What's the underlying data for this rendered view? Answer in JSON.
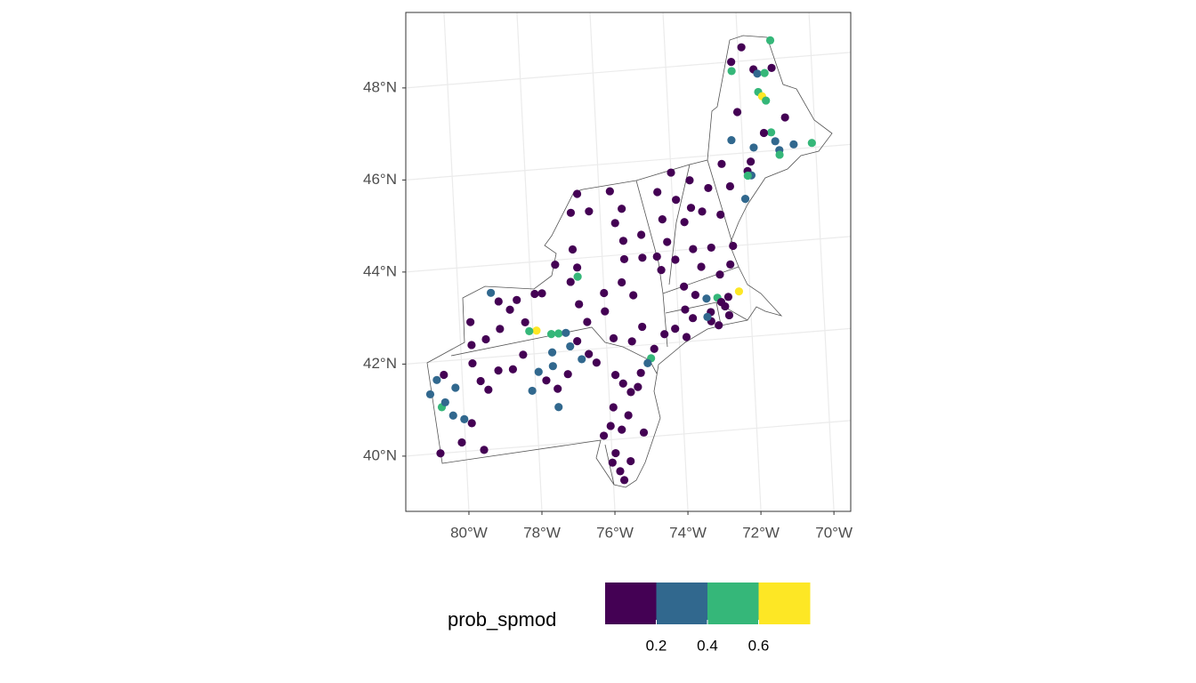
{
  "chart_data": {
    "type": "map",
    "xlim": [
      -81.73,
      -69.54
    ],
    "ylim": [
      38.8,
      49.64
    ],
    "xticks": [
      {
        "value": -80,
        "label": "80°W"
      },
      {
        "value": -78,
        "label": "78°W"
      },
      {
        "value": -76,
        "label": "76°W"
      },
      {
        "value": -74,
        "label": "74°W"
      },
      {
        "value": -72,
        "label": "72°W"
      },
      {
        "value": -70,
        "label": "70°W"
      }
    ],
    "yticks": [
      {
        "value": 40,
        "label": "40°N"
      },
      {
        "value": 42,
        "label": "42°N"
      },
      {
        "value": 44,
        "label": "44°N"
      },
      {
        "value": 46,
        "label": "46°N"
      },
      {
        "value": 48,
        "label": "48°N"
      }
    ],
    "grid": true,
    "legend": {
      "title": "prob_spmod",
      "breaks": [
        0.2,
        0.4,
        0.6
      ],
      "colors": [
        "#440154",
        "#31688e",
        "#35b779",
        "#fde725"
      ]
    },
    "x": [
      -71.1,
      -71.9,
      -72.2,
      -71.6,
      -71.1,
      -72.2,
      -71.5,
      -71.3,
      -71.5,
      -71.4,
      -71.3,
      -72.1,
      -70.8,
      -71.2,
      -71.4,
      -72.3,
      -71.1,
      -71.0,
      -70.6,
      -70.1,
      -71.7,
      -71.0,
      -71.8,
      -72.6,
      -71.9,
      -71.8,
      -72.4,
      -71.9,
      -72.0,
      -74.0,
      -73.5,
      -73.0,
      -74.4,
      -73.9,
      -73.5,
      -74.3,
      -73.7,
      -73.2,
      -72.7,
      -74.2,
      -74.0,
      -74.5,
      -73.5,
      -73.0,
      -72.4,
      -72.5,
      -72.8,
      -73.3,
      -73.8,
      -74.4,
      -76.6,
      -76.8,
      -76.3,
      -75.7,
      -75.6,
      -75.4,
      -75.4,
      -74.9,
      -76.8,
      -76.7,
      -77.3,
      -75.4,
      -74.9,
      -76.9,
      -76.7,
      -77.9,
      -77.7,
      -79.1,
      -78.9,
      -78.4,
      -79.7,
      -78.6,
      -79.7,
      -79.3,
      -78.9,
      -78.2,
      -77.9,
      -78.1,
      -77.5,
      -77.3,
      -77.1,
      -77.0,
      -77.5,
      -77.5,
      -76.5,
      -76.5,
      -76.7,
      -76.0,
      -75.5,
      -75.2,
      -76.0,
      -75.8,
      -75.3,
      -75.0,
      -74.7,
      -74.8,
      -74.9,
      -76.8,
      -76.7,
      -73.5,
      -73.2,
      -72.9,
      -72.6,
      -72.3,
      -72.8,
      -73.1,
      -72.7,
      -72.6,
      -73.1,
      -73.6,
      -73.8,
      -74.1,
      -73.8,
      -74.4,
      -73.2,
      -72.9,
      -80.5,
      -80.7,
      -80.9,
      -80.6,
      -80.2,
      -80.5,
      -79.7,
      -79.5,
      -79.3,
      -80.0,
      -80.3,
      -79.8,
      -80.1,
      -80.7,
      -79.5,
      -79.0,
      -78.6,
      -78.3,
      -77.9,
      -78.1,
      -77.4,
      -77.7,
      -77.4,
      -77.1,
      -76.3,
      -75.8,
      -75.6,
      -75.4,
      -75.9,
      -75.5,
      -76.0,
      -76.2,
      -75.7,
      -75.1,
      -75.9,
      -76.0,
      -75.8,
      -75.7,
      -75.5,
      -75.2,
      -75.1
    ],
    "y": [
      48.4,
      48.3,
      48.0,
      47.8,
      47.8,
      47.8,
      47.7,
      47.7,
      47.3,
      47.2,
      47.1,
      46.9,
      46.7,
      46.4,
      46.4,
      46.3,
      46.2,
      46.0,
      46.1,
      46.1,
      46.1,
      45.9,
      45.8,
      45.8,
      45.6,
      45.5,
      45.3,
      45.5,
      45.0,
      45.7,
      45.5,
      45.3,
      45.3,
      45.1,
      44.9,
      44.7,
      44.6,
      44.8,
      44.7,
      44.2,
      43.8,
      43.9,
      44.0,
      44.0,
      44.0,
      43.6,
      43.4,
      43.6,
      43.2,
      43.6,
      45.4,
      45.0,
      45.0,
      45.4,
      44.7,
      45.0,
      44.3,
      44.4,
      44.2,
      43.8,
      43.9,
      43.9,
      43.9,
      43.5,
      43.6,
      43.3,
      43.3,
      43.4,
      43.2,
      43.2,
      42.8,
      43.0,
      42.3,
      42.4,
      42.6,
      42.7,
      42.5,
      42.5,
      42.4,
      42.4,
      42.4,
      42.1,
      42.0,
      41.7,
      41.9,
      42.6,
      43.0,
      43.2,
      43.4,
      43.1,
      42.8,
      42.2,
      42.1,
      42.4,
      41.9,
      41.7,
      41.6,
      42.2,
      41.8,
      43.0,
      42.9,
      42.9,
      42.9,
      43.0,
      42.8,
      42.6,
      42.7,
      42.5,
      42.4,
      42.5,
      42.7,
      42.3,
      42.1,
      42.2,
      42.5,
      42.3,
      41.7,
      41.6,
      41.3,
      41.0,
      41.4,
      41.1,
      41.9,
      41.5,
      41.3,
      40.7,
      40.8,
      40.6,
      40.2,
      40.0,
      40.0,
      41.7,
      41.7,
      42.0,
      41.6,
      41.2,
      40.8,
      41.4,
      41.2,
      41.5,
      41.7,
      41.4,
      41.2,
      41.0,
      40.7,
      40.5,
      40.3,
      40.1,
      40.2,
      40.1,
      39.7,
      39.5,
      39.3,
      39.1,
      39.5,
      41.1,
      41.4
    ],
    "values": [
      0.5,
      0.1,
      0.1,
      0.1,
      0.1,
      0.5,
      0.3,
      0.5,
      0.5,
      0.7,
      0.5,
      0.1,
      0.1,
      0.5,
      0.1,
      0.3,
      0.3,
      0.3,
      0.3,
      0.5,
      0.3,
      0.5,
      0.1,
      0.1,
      0.1,
      0.3,
      0.1,
      0.5,
      0.3,
      0.1,
      0.1,
      0.1,
      0.1,
      0.1,
      0.1,
      0.1,
      0.1,
      0.1,
      0.1,
      0.1,
      0.1,
      0.1,
      0.1,
      0.1,
      0.1,
      0.1,
      0.1,
      0.1,
      0.1,
      0.1,
      0.1,
      0.1,
      0.1,
      0.1,
      0.1,
      0.1,
      0.1,
      0.1,
      0.1,
      0.1,
      0.1,
      0.1,
      0.1,
      0.1,
      0.5,
      0.1,
      0.1,
      0.3,
      0.1,
      0.1,
      0.1,
      0.1,
      0.1,
      0.1,
      0.1,
      0.1,
      0.7,
      0.5,
      0.5,
      0.5,
      0.3,
      0.3,
      0.3,
      0.3,
      0.1,
      0.1,
      0.1,
      0.1,
      0.1,
      0.1,
      0.1,
      0.1,
      0.1,
      0.1,
      0.1,
      0.5,
      0.3,
      0.1,
      0.3,
      0.1,
      0.3,
      0.5,
      0.1,
      0.7,
      0.1,
      0.1,
      0.1,
      0.1,
      0.1,
      0.1,
      0.1,
      0.1,
      0.1,
      0.1,
      0.3,
      0.1,
      0.1,
      0.3,
      0.3,
      0.5,
      0.3,
      0.3,
      0.1,
      0.1,
      0.1,
      0.3,
      0.3,
      0.1,
      0.1,
      0.1,
      0.1,
      0.1,
      0.1,
      0.1,
      0.3,
      0.3,
      0.3,
      0.1,
      0.1,
      0.1,
      0.1,
      0.1,
      0.1,
      0.1,
      0.1,
      0.1,
      0.1,
      0.1,
      0.1,
      0.1,
      0.1,
      0.1,
      0.1,
      0.1,
      0.1,
      0.1,
      0.1
    ]
  }
}
